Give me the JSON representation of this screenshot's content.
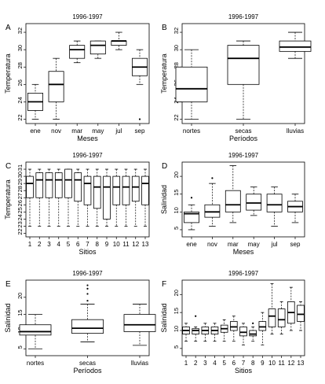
{
  "chart_data": [
    {
      "panel": "A",
      "type": "box",
      "title": "1996-1997",
      "xlabel": "Meses",
      "ylabel": "Temperatura",
      "ylim": [
        21.5,
        33
      ],
      "yticks": [
        22,
        24,
        26,
        28,
        30,
        32
      ],
      "categories": [
        "ene",
        "nov",
        "mar",
        "may",
        "jul",
        "sep"
      ],
      "boxes": [
        {
          "min": 22,
          "q1": 23,
          "median": 24,
          "q3": 25,
          "max": 26
        },
        {
          "min": 22,
          "q1": 24,
          "median": 26,
          "q3": 27.5,
          "max": 29
        },
        {
          "min": 28.5,
          "q1": 29,
          "median": 30,
          "q3": 30.5,
          "max": 31
        },
        {
          "min": 29,
          "q1": 29.5,
          "median": 30.5,
          "q3": 31,
          "max": 31
        },
        {
          "min": 30,
          "q1": 30.5,
          "median": 31,
          "q3": 31,
          "max": 32
        },
        {
          "min": 26,
          "q1": 27,
          "median": 28,
          "q3": 29,
          "max": 30,
          "outliers": [
            22
          ]
        }
      ]
    },
    {
      "panel": "B",
      "type": "box",
      "title": "1996-1997",
      "xlabel": "Períodos",
      "ylabel": "Temperatura",
      "ylim": [
        21.5,
        33
      ],
      "yticks": [
        22,
        24,
        26,
        28,
        30,
        32
      ],
      "categories": [
        "nortes",
        "secas",
        "lluvias"
      ],
      "boxes": [
        {
          "min": 22,
          "q1": 24,
          "median": 25.5,
          "q3": 28,
          "max": 30
        },
        {
          "min": 22,
          "q1": 26,
          "median": 29,
          "q3": 30.5,
          "max": 31
        },
        {
          "min": 29,
          "q1": 29.8,
          "median": 30.3,
          "q3": 31,
          "max": 32
        }
      ]
    },
    {
      "panel": "C",
      "type": "box",
      "title": "1996-1997",
      "xlabel": "Sitios",
      "ylabel": "Temperatura",
      "ylim": [
        21.5,
        32
      ],
      "yticks": [
        22,
        23,
        24,
        25,
        26,
        27,
        28,
        29,
        30,
        31
      ],
      "categories": [
        "1",
        "2",
        "3",
        "4",
        "5",
        "6",
        "7",
        "8",
        "9",
        "10",
        "11",
        "12",
        "13"
      ],
      "boxes": [
        {
          "min": 23,
          "q1": 27,
          "median": 29,
          "q3": 30,
          "max": 31
        },
        {
          "min": 23,
          "q1": 27,
          "median": 29.5,
          "q3": 30.5,
          "max": 31
        },
        {
          "min": 23,
          "q1": 27,
          "median": 29.5,
          "q3": 30.5,
          "max": 31
        },
        {
          "min": 23,
          "q1": 27,
          "median": 29.5,
          "q3": 30.5,
          "max": 31
        },
        {
          "min": 23,
          "q1": 27,
          "median": 29.5,
          "q3": 31,
          "max": 31
        },
        {
          "min": 23,
          "q1": 26.5,
          "median": 29.5,
          "q3": 30.5,
          "max": 31
        },
        {
          "min": 23,
          "q1": 26,
          "median": 29,
          "q3": 30,
          "max": 31
        },
        {
          "min": 23,
          "q1": 25.5,
          "median": 28.5,
          "q3": 30,
          "max": 31
        },
        {
          "min": 23,
          "q1": 24,
          "median": 28.5,
          "q3": 30,
          "max": 31
        },
        {
          "min": 23,
          "q1": 26,
          "median": 28.5,
          "q3": 30,
          "max": 31
        },
        {
          "min": 23,
          "q1": 26,
          "median": 28.5,
          "q3": 30,
          "max": 31
        },
        {
          "min": 23,
          "q1": 26.5,
          "median": 28.5,
          "q3": 30,
          "max": 31
        },
        {
          "min": 23,
          "q1": 26,
          "median": 29,
          "q3": 30,
          "max": 31
        }
      ]
    },
    {
      "panel": "D",
      "type": "box",
      "title": "1996-1997",
      "xlabel": "Meses",
      "ylabel": "Salinidad",
      "ylim": [
        3,
        24
      ],
      "yticks": [
        5,
        10,
        15,
        20
      ],
      "categories": [
        "ene",
        "nov",
        "mar",
        "may",
        "jul",
        "sep"
      ],
      "boxes": [
        {
          "min": 5,
          "q1": 7,
          "median": 9.5,
          "q3": 10,
          "max": 12,
          "outliers": [
            14
          ]
        },
        {
          "min": 6,
          "q1": 8.5,
          "median": 10,
          "q3": 12,
          "max": 18,
          "outliers": [
            19.5
          ]
        },
        {
          "min": 7,
          "q1": 10,
          "median": 12,
          "q3": 16,
          "max": 23
        },
        {
          "min": 9,
          "q1": 10.5,
          "median": 12.5,
          "q3": 15,
          "max": 17
        },
        {
          "min": 6,
          "q1": 10,
          "median": 12,
          "q3": 15,
          "max": 17
        },
        {
          "min": 7,
          "q1": 10,
          "median": 11.5,
          "q3": 13,
          "max": 15
        }
      ]
    },
    {
      "panel": "E",
      "type": "box",
      "title": "1996-1997",
      "xlabel": "Períodos",
      "ylabel": "Salinidad",
      "ylim": [
        3,
        25
      ],
      "yticks": [
        5,
        10,
        15,
        20
      ],
      "categories": [
        "nortes",
        "secas",
        "lluvias"
      ],
      "boxes": [
        {
          "min": 5,
          "q1": 9,
          "median": 10,
          "q3": 12,
          "max": 15
        },
        {
          "min": 7,
          "q1": 9.5,
          "median": 11,
          "q3": 13.5,
          "max": 18,
          "outliers": [
            19,
            21,
            22.5,
            23.5
          ]
        },
        {
          "min": 6,
          "q1": 10,
          "median": 12,
          "q3": 15,
          "max": 18
        }
      ]
    },
    {
      "panel": "F",
      "type": "box",
      "title": "1996-1997",
      "xlabel": "Sitios",
      "ylabel": "Salinidad",
      "ylim": [
        3,
        24
      ],
      "yticks": [
        5,
        10,
        15,
        20
      ],
      "categories": [
        "1",
        "2",
        "3",
        "4",
        "5",
        "6",
        "7",
        "8",
        "9",
        "10",
        "11",
        "12",
        "13"
      ],
      "boxes": [
        {
          "min": 7,
          "q1": 9,
          "median": 10,
          "q3": 11,
          "max": 12
        },
        {
          "min": 7,
          "q1": 9,
          "median": 10,
          "q3": 10.5,
          "max": 11,
          "outliers": [
            14
          ]
        },
        {
          "min": 7,
          "q1": 9,
          "median": 10,
          "q3": 11,
          "max": 12
        },
        {
          "min": 7,
          "q1": 9,
          "median": 10,
          "q3": 11,
          "max": 12
        },
        {
          "min": 7,
          "q1": 9.5,
          "median": 10.5,
          "q3": 11.5,
          "max": 13
        },
        {
          "min": 7,
          "q1": 10,
          "median": 11,
          "q3": 12.5,
          "max": 14
        },
        {
          "min": 6,
          "q1": 8.5,
          "median": 9.5,
          "q3": 11,
          "max": 12
        },
        {
          "min": 7,
          "q1": 8.5,
          "median": 9,
          "q3": 10,
          "max": 11,
          "outliers": [
            12
          ]
        },
        {
          "min": 6,
          "q1": 10,
          "median": 11,
          "q3": 12.5,
          "max": 15
        },
        {
          "min": 9,
          "q1": 11,
          "median": 14,
          "q3": 16,
          "max": 23
        },
        {
          "min": 9,
          "q1": 11,
          "median": 13,
          "q3": 16,
          "max": 18
        },
        {
          "min": 10,
          "q1": 12,
          "median": 15,
          "q3": 18,
          "max": 22
        },
        {
          "min": 10,
          "q1": 12.5,
          "median": 14.5,
          "q3": 17,
          "max": 18
        }
      ]
    }
  ]
}
